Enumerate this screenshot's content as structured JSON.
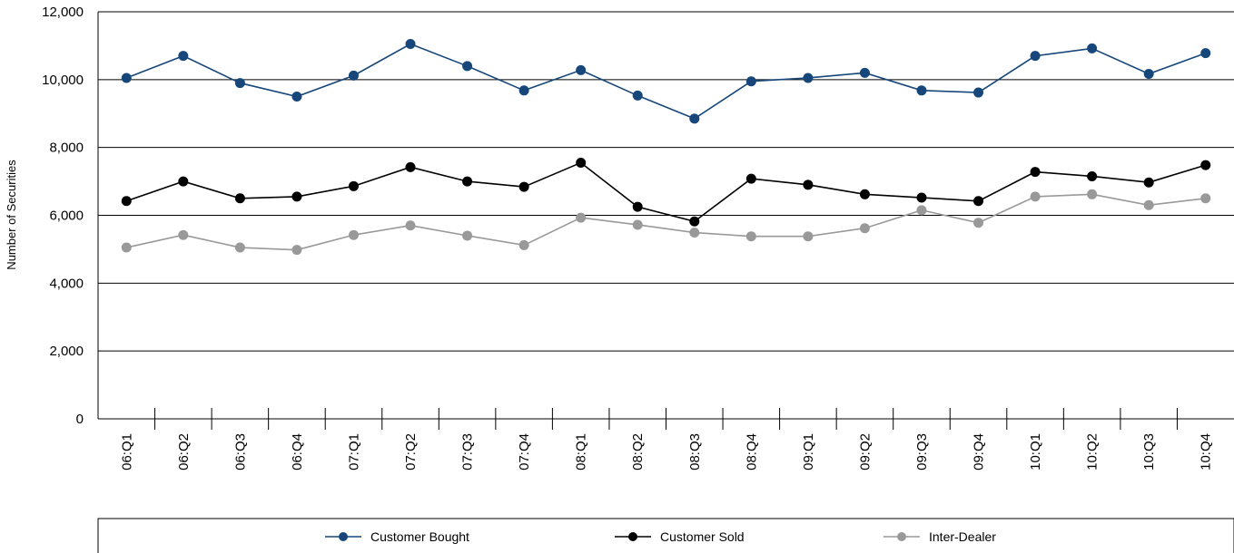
{
  "chart_data": {
    "type": "line",
    "ylabel": "Number of Securities",
    "ylim": [
      0,
      12000
    ],
    "yticks": [
      "0",
      "2,000",
      "4,000",
      "6,000",
      "8,000",
      "10,000",
      "12,000"
    ],
    "ytick_values": [
      0,
      2000,
      4000,
      6000,
      8000,
      10000,
      12000
    ],
    "grid": true,
    "legend_position": "bottom",
    "categories": [
      "06:Q1",
      "06:Q2",
      "06:Q3",
      "06:Q4",
      "07:Q1",
      "07:Q2",
      "07:Q3",
      "07:Q4",
      "08:Q1",
      "08:Q2",
      "08:Q3",
      "08:Q4",
      "09:Q1",
      "09:Q2",
      "09:Q3",
      "09:Q4",
      "10:Q1",
      "10:Q2",
      "10:Q3",
      "10:Q4"
    ],
    "series": [
      {
        "name": "Customer Bought",
        "color": "#17477a",
        "values": [
          10050,
          10700,
          9900,
          9500,
          10120,
          11050,
          10400,
          9680,
          10280,
          9530,
          8850,
          9950,
          10050,
          10200,
          9680,
          9620,
          10700,
          10920,
          10170,
          10780
        ]
      },
      {
        "name": "Customer Sold",
        "color": "#000000",
        "values": [
          6420,
          7000,
          6500,
          6550,
          6860,
          7420,
          7000,
          6840,
          7550,
          6250,
          5820,
          7080,
          6900,
          6620,
          6520,
          6420,
          7280,
          7150,
          6970,
          7480
        ]
      },
      {
        "name": "Inter-Dealer",
        "color": "#999999",
        "values": [
          5050,
          5420,
          5050,
          4980,
          5420,
          5700,
          5400,
          5120,
          5930,
          5720,
          5490,
          5380,
          5380,
          5620,
          6150,
          5780,
          6550,
          6620,
          6300,
          6500
        ]
      }
    ]
  }
}
